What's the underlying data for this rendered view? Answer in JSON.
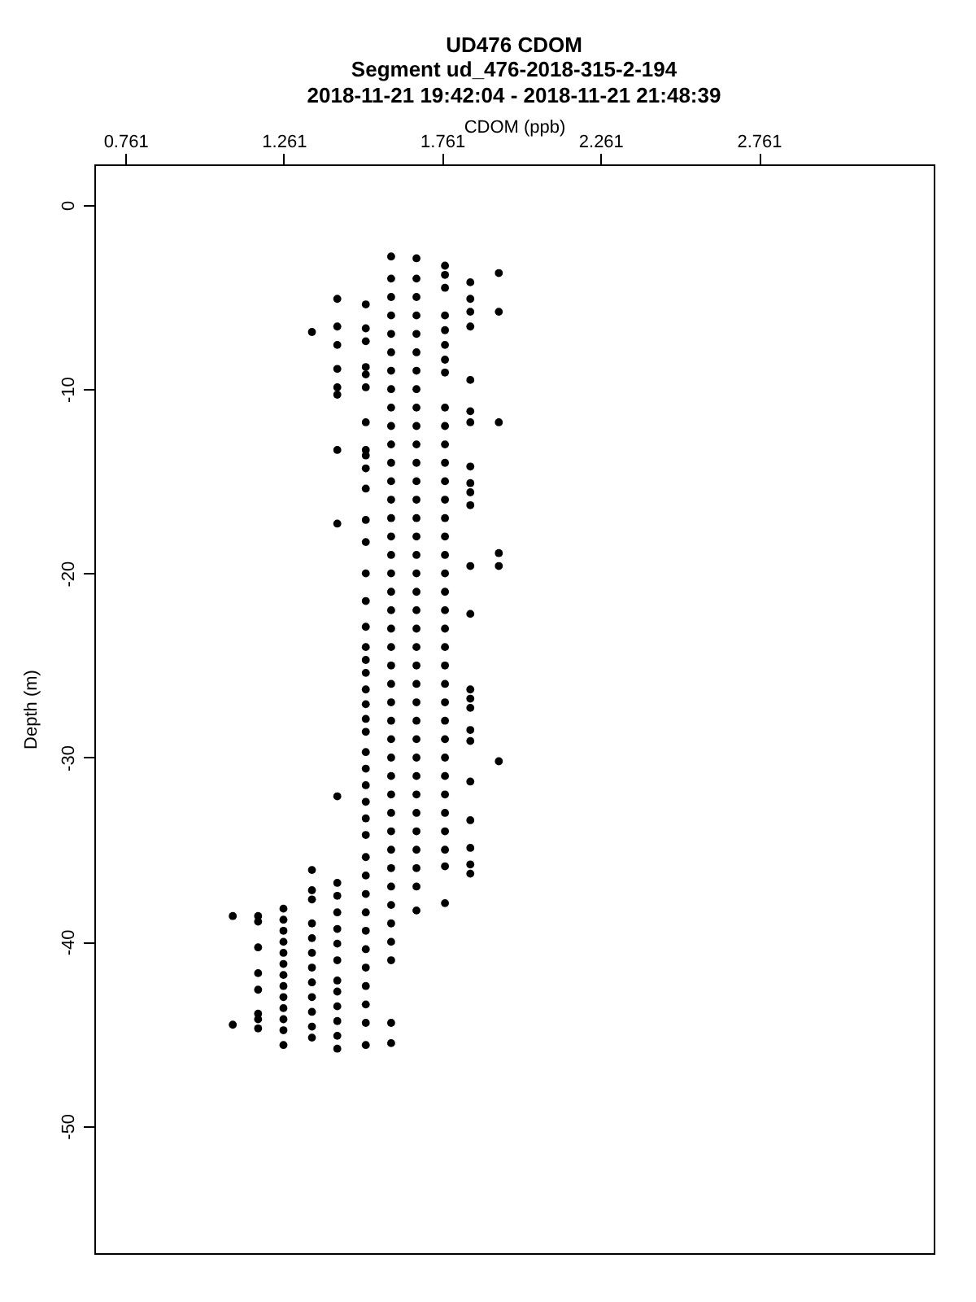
{
  "chart_data": {
    "type": "scatter",
    "title": "UD476 CDOM",
    "subtitle": "Segment ud_476-2018-315-2-194\n2018-11-21 19:42:04 - 2018-11-21 21:48:39",
    "xlabel": "CDOM (ppb)",
    "ylabel": "Depth (m)",
    "xlim": [
      0.663,
      3.313
    ],
    "xticks": [
      0.761,
      1.261,
      1.761,
      2.261,
      2.761
    ],
    "ylim": [
      -56.9,
      2.2
    ],
    "yticks": [
      0,
      -10,
      -20,
      -30,
      -40,
      -50
    ],
    "marker": "circle",
    "series": [
      {
        "color": "#000000",
        "x": [
          1.1,
          1.1,
          1.18,
          1.18,
          1.18,
          1.18,
          1.18,
          1.18,
          1.18,
          1.18,
          1.26,
          1.26,
          1.26,
          1.26,
          1.26,
          1.26,
          1.26,
          1.26,
          1.26,
          1.26,
          1.26,
          1.26,
          1.26,
          1.35,
          1.35,
          1.35,
          1.35,
          1.35,
          1.35,
          1.35,
          1.35,
          1.35,
          1.35,
          1.35,
          1.35,
          1.35,
          1.43,
          1.43,
          1.43,
          1.43,
          1.43,
          1.43,
          1.43,
          1.43,
          1.43,
          1.43,
          1.43,
          1.43,
          1.43,
          1.43,
          1.43,
          1.43,
          1.43,
          1.43,
          1.43,
          1.43,
          1.43
        ],
        "values": [
          -38.6,
          -44.5,
          -38.6,
          -38.9,
          -40.3,
          -41.7,
          -42.6,
          -43.9,
          -44.2,
          -44.7,
          -38.2,
          -38.8,
          -39.4,
          -40,
          -40.6,
          -41.2,
          -41.8,
          -42.4,
          -43,
          -43.6,
          -44.2,
          -44.8,
          -45.6,
          -6.9,
          -36.1,
          -37.2,
          -37.7,
          -39,
          -39.8,
          -40.6,
          -41.4,
          -42.2,
          -43,
          -43.8,
          -44.6,
          -45.2,
          -5.1,
          -6.6,
          -7.6,
          -8.9,
          -9.9,
          -10.3,
          -13.3,
          -17.3,
          -32.1,
          -36.8,
          -37.5,
          -38.4,
          -39.3,
          -40.1,
          -41,
          -42.1,
          -42.7,
          -43.5,
          -44.3,
          -45.1,
          -45.8
        ]
      },
      {
        "color": "#000000",
        "x": [
          1.52,
          1.52,
          1.52,
          1.52,
          1.52,
          1.52,
          1.52,
          1.52,
          1.52,
          1.52,
          1.52,
          1.52,
          1.52,
          1.52,
          1.52,
          1.52,
          1.52,
          1.52,
          1.52,
          1.52,
          1.52,
          1.52,
          1.52,
          1.52,
          1.52,
          1.52,
          1.52,
          1.52,
          1.52,
          1.52,
          1.52,
          1.52,
          1.52,
          1.52,
          1.52,
          1.52,
          1.52,
          1.52,
          1.52,
          1.52
        ],
        "values": [
          -5.4,
          -6.7,
          -7.4,
          -8.8,
          -9.2,
          -9.9,
          -11.8,
          -13.3,
          -13.6,
          -14.3,
          -15.4,
          -17.1,
          -18.3,
          -20,
          -21.5,
          -22.9,
          -24,
          -24.7,
          -25.4,
          -26.3,
          -27.1,
          -27.9,
          -28.6,
          -29.7,
          -30.6,
          -31.5,
          -32.4,
          -33.3,
          -34.2,
          -35.4,
          -36.4,
          -37.4,
          -38.4,
          -39.4,
          -40.4,
          -41.4,
          -42.4,
          -43.4,
          -44.4,
          -45.6
        ]
      },
      {
        "color": "#000000",
        "x": [
          1.6,
          1.6,
          1.6,
          1.6,
          1.6,
          1.6,
          1.6,
          1.6,
          1.6,
          1.6,
          1.6,
          1.6,
          1.6,
          1.6,
          1.6,
          1.6,
          1.6,
          1.6,
          1.6,
          1.6,
          1.6,
          1.6,
          1.6,
          1.6,
          1.6,
          1.6,
          1.6,
          1.6,
          1.6,
          1.6,
          1.6,
          1.6,
          1.6,
          1.6,
          1.6,
          1.6,
          1.6,
          1.6,
          1.6,
          1.6,
          1.6
        ],
        "values": [
          -2.8,
          -4,
          -5,
          -6,
          -7,
          -8,
          -9,
          -10,
          -11,
          -12,
          -13,
          -14,
          -15,
          -16,
          -17,
          -18,
          -19,
          -20,
          -21,
          -22,
          -23,
          -24,
          -25,
          -26,
          -27,
          -28,
          -29,
          -30,
          -31,
          -32,
          -33,
          -34,
          -35,
          -36,
          -37,
          -38,
          -39,
          -40,
          -41,
          -44.4,
          -45.5
        ]
      },
      {
        "color": "#000000",
        "x": [
          1.68,
          1.68,
          1.68,
          1.68,
          1.68,
          1.68,
          1.68,
          1.68,
          1.68,
          1.68,
          1.68,
          1.68,
          1.68,
          1.68,
          1.68,
          1.68,
          1.68,
          1.68,
          1.68,
          1.68,
          1.68,
          1.68,
          1.68,
          1.68,
          1.68,
          1.68,
          1.68,
          1.68,
          1.68,
          1.68,
          1.68,
          1.68,
          1.68,
          1.68,
          1.68,
          1.68
        ],
        "values": [
          -2.9,
          -4,
          -5,
          -6,
          -7,
          -8,
          -9,
          -10,
          -11,
          -12,
          -13,
          -14,
          -15,
          -16,
          -17,
          -18,
          -19,
          -20,
          -21,
          -22,
          -23,
          -24,
          -25,
          -26,
          -27,
          -28,
          -29,
          -30,
          -31,
          -32,
          -33,
          -34,
          -35,
          -36,
          -37,
          -38.3
        ]
      },
      {
        "color": "#000000",
        "x": [
          1.77,
          1.77,
          1.77,
          1.77,
          1.77,
          1.77,
          1.77,
          1.77,
          1.77,
          1.77,
          1.77,
          1.77,
          1.77,
          1.77,
          1.77,
          1.77,
          1.77,
          1.77,
          1.77,
          1.77,
          1.77,
          1.77,
          1.77,
          1.77,
          1.77,
          1.77,
          1.77,
          1.77,
          1.77,
          1.77,
          1.77,
          1.77,
          1.77,
          1.77,
          1.77
        ],
        "values": [
          -3.3,
          -3.8,
          -4.5,
          -6,
          -6.8,
          -7.6,
          -8.4,
          -9.1,
          -11,
          -12,
          -13,
          -14,
          -15,
          -16,
          -17,
          -18,
          -19,
          -20,
          -21,
          -22,
          -23,
          -24,
          -25,
          -26,
          -27,
          -28,
          -29,
          -30,
          -31,
          -32,
          -33,
          -34,
          -35,
          -35.9,
          -37.9
        ]
      },
      {
        "color": "#000000",
        "x": [
          1.85,
          1.85,
          1.85,
          1.85,
          1.85,
          1.85,
          1.85,
          1.85,
          1.85,
          1.85,
          1.85,
          1.85,
          1.85,
          1.85,
          1.85,
          1.85,
          1.85,
          1.85,
          1.85,
          1.85,
          1.85,
          1.85,
          1.85,
          1.94,
          1.94,
          1.94,
          1.94,
          1.94,
          1.94
        ],
        "values": [
          -4.2,
          -5.1,
          -5.8,
          -6.6,
          -9.5,
          -11.2,
          -11.8,
          -14.2,
          -15.1,
          -15.6,
          -16.3,
          -19.6,
          -22.2,
          -26.3,
          -26.8,
          -27.3,
          -28.5,
          -29.1,
          -31.3,
          -33.4,
          -34.9,
          -35.8,
          -36.3,
          -3.7,
          -5.8,
          -11.8,
          -18.9,
          -19.6,
          -30.2
        ]
      }
    ]
  }
}
